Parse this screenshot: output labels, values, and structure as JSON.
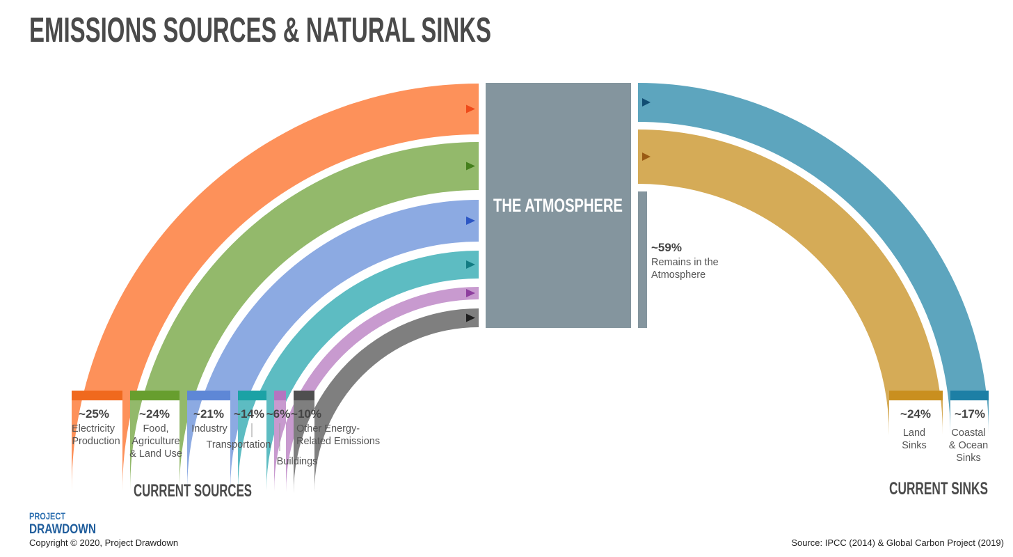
{
  "title": "EMISSIONS SOURCES & NATURAL SINKS",
  "atmosphere_label": "THE ATMOSPHERE",
  "remains": {
    "pct": "~59%",
    "line1": "Remains in the",
    "line2": "Atmosphere",
    "color": "#84959e"
  },
  "sources": [
    {
      "pct": "~25%",
      "lines": [
        "Electricity",
        "Production"
      ],
      "color": "#fd915a",
      "dark": "#f0691e",
      "arrow": "#ee4a1a"
    },
    {
      "pct": "~24%",
      "lines": [
        "Food,",
        "Agriculture",
        "& Land Use"
      ],
      "color": "#93b96b",
      "dark": "#679e2e",
      "arrow": "#447f1c"
    },
    {
      "pct": "~21%",
      "lines": [
        "Industry"
      ],
      "color": "#8caae2",
      "dark": "#5e87d6",
      "arrow": "#2c56c4"
    },
    {
      "pct": "~14%",
      "lines": [
        "Transportation"
      ],
      "color": "#5dbcc2",
      "dark": "#1ba2a5",
      "arrow": "#137c83"
    },
    {
      "pct": "~6%",
      "lines": [
        "Buildings"
      ],
      "color": "#c89acf",
      "dark": "#b574c0",
      "arrow": "#8e3f9e"
    },
    {
      "pct": "~10%",
      "lines": [
        "Other Energy-",
        "Related Emissions"
      ],
      "color": "#7f7f7f",
      "dark": "#4f4f4f",
      "arrow": "#1e1e1e"
    }
  ],
  "sinks": [
    {
      "pct": "~24%",
      "lines": [
        "Land",
        "Sinks"
      ],
      "color": "#d5ab57",
      "dark": "#c98f1f",
      "arrow": "#9a5a14"
    },
    {
      "pct": "~17%",
      "lines": [
        "Coastal",
        "& Ocean",
        "Sinks"
      ],
      "color": "#5da5be",
      "dark": "#1d7fa5",
      "arrow": "#114d72"
    }
  ],
  "current_sources": "CURRENT SOURCES",
  "current_sinks": "CURRENT SINKS",
  "logo_line1": "PROJECT",
  "logo_line2": "DRAWDOWN",
  "copyright": "Copyright © 2020, Project Drawdown",
  "source_note": "Source: IPCC (2014) & Global Carbon Project (2019)"
}
